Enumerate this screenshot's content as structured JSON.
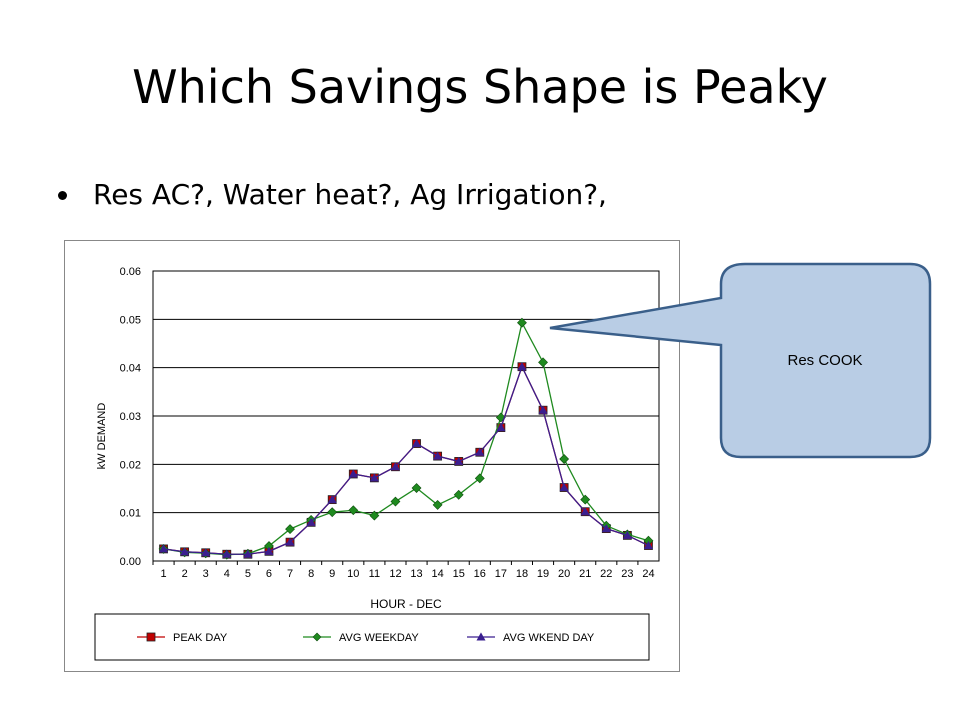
{
  "slide": {
    "title": "Which Savings Shape is Peaky",
    "bullet": "Res AC?, Water heat?, Ag Irrigation?,"
  },
  "callout": {
    "text": "Res COOK",
    "fill": "#b9cde5",
    "stroke": "#3a5f8a"
  },
  "chart_data": {
    "type": "line",
    "title": "",
    "xlabel": "HOUR - DEC",
    "ylabel": "kW DEMAND",
    "x": [
      1,
      2,
      3,
      4,
      5,
      6,
      7,
      8,
      9,
      10,
      11,
      12,
      13,
      14,
      15,
      16,
      17,
      18,
      19,
      20,
      21,
      22,
      23,
      24
    ],
    "ylim": [
      0,
      0.06
    ],
    "yticks": [
      "0.00",
      "0.01",
      "0.02",
      "0.03",
      "0.04",
      "0.05",
      "0.06"
    ],
    "grid": "horizontal",
    "legend": "bottom",
    "series": [
      {
        "name": "PEAK DAY",
        "color": "#c00000",
        "marker": "square",
        "values": [
          0.0025,
          0.0019,
          0.0017,
          0.0014,
          0.0014,
          0.002,
          0.0039,
          0.008,
          0.0127,
          0.018,
          0.0172,
          0.0195,
          0.0243,
          0.0217,
          0.0206,
          0.0225,
          0.0276,
          0.0402,
          0.0312,
          0.0152,
          0.0102,
          0.0067,
          0.0053,
          0.0032
        ]
      },
      {
        "name": "AVG WEEKDAY",
        "color": "#1f8a1f",
        "marker": "diamond",
        "values": [
          0.0025,
          0.0018,
          0.0016,
          0.0013,
          0.0015,
          0.0031,
          0.0066,
          0.0085,
          0.0101,
          0.0105,
          0.0094,
          0.0123,
          0.0151,
          0.0116,
          0.0137,
          0.0171,
          0.0297,
          0.0493,
          0.0411,
          0.0211,
          0.0127,
          0.0073,
          0.0055,
          0.0042
        ]
      },
      {
        "name": "AVG WKEND DAY",
        "color": "#3a1f8f",
        "marker": "triangle",
        "values": [
          0.0025,
          0.0019,
          0.0017,
          0.0014,
          0.0014,
          0.002,
          0.0039,
          0.008,
          0.0127,
          0.018,
          0.0172,
          0.0195,
          0.0243,
          0.0217,
          0.0206,
          0.0225,
          0.0276,
          0.0402,
          0.0312,
          0.0152,
          0.0102,
          0.0067,
          0.0053,
          0.0032
        ]
      }
    ]
  }
}
